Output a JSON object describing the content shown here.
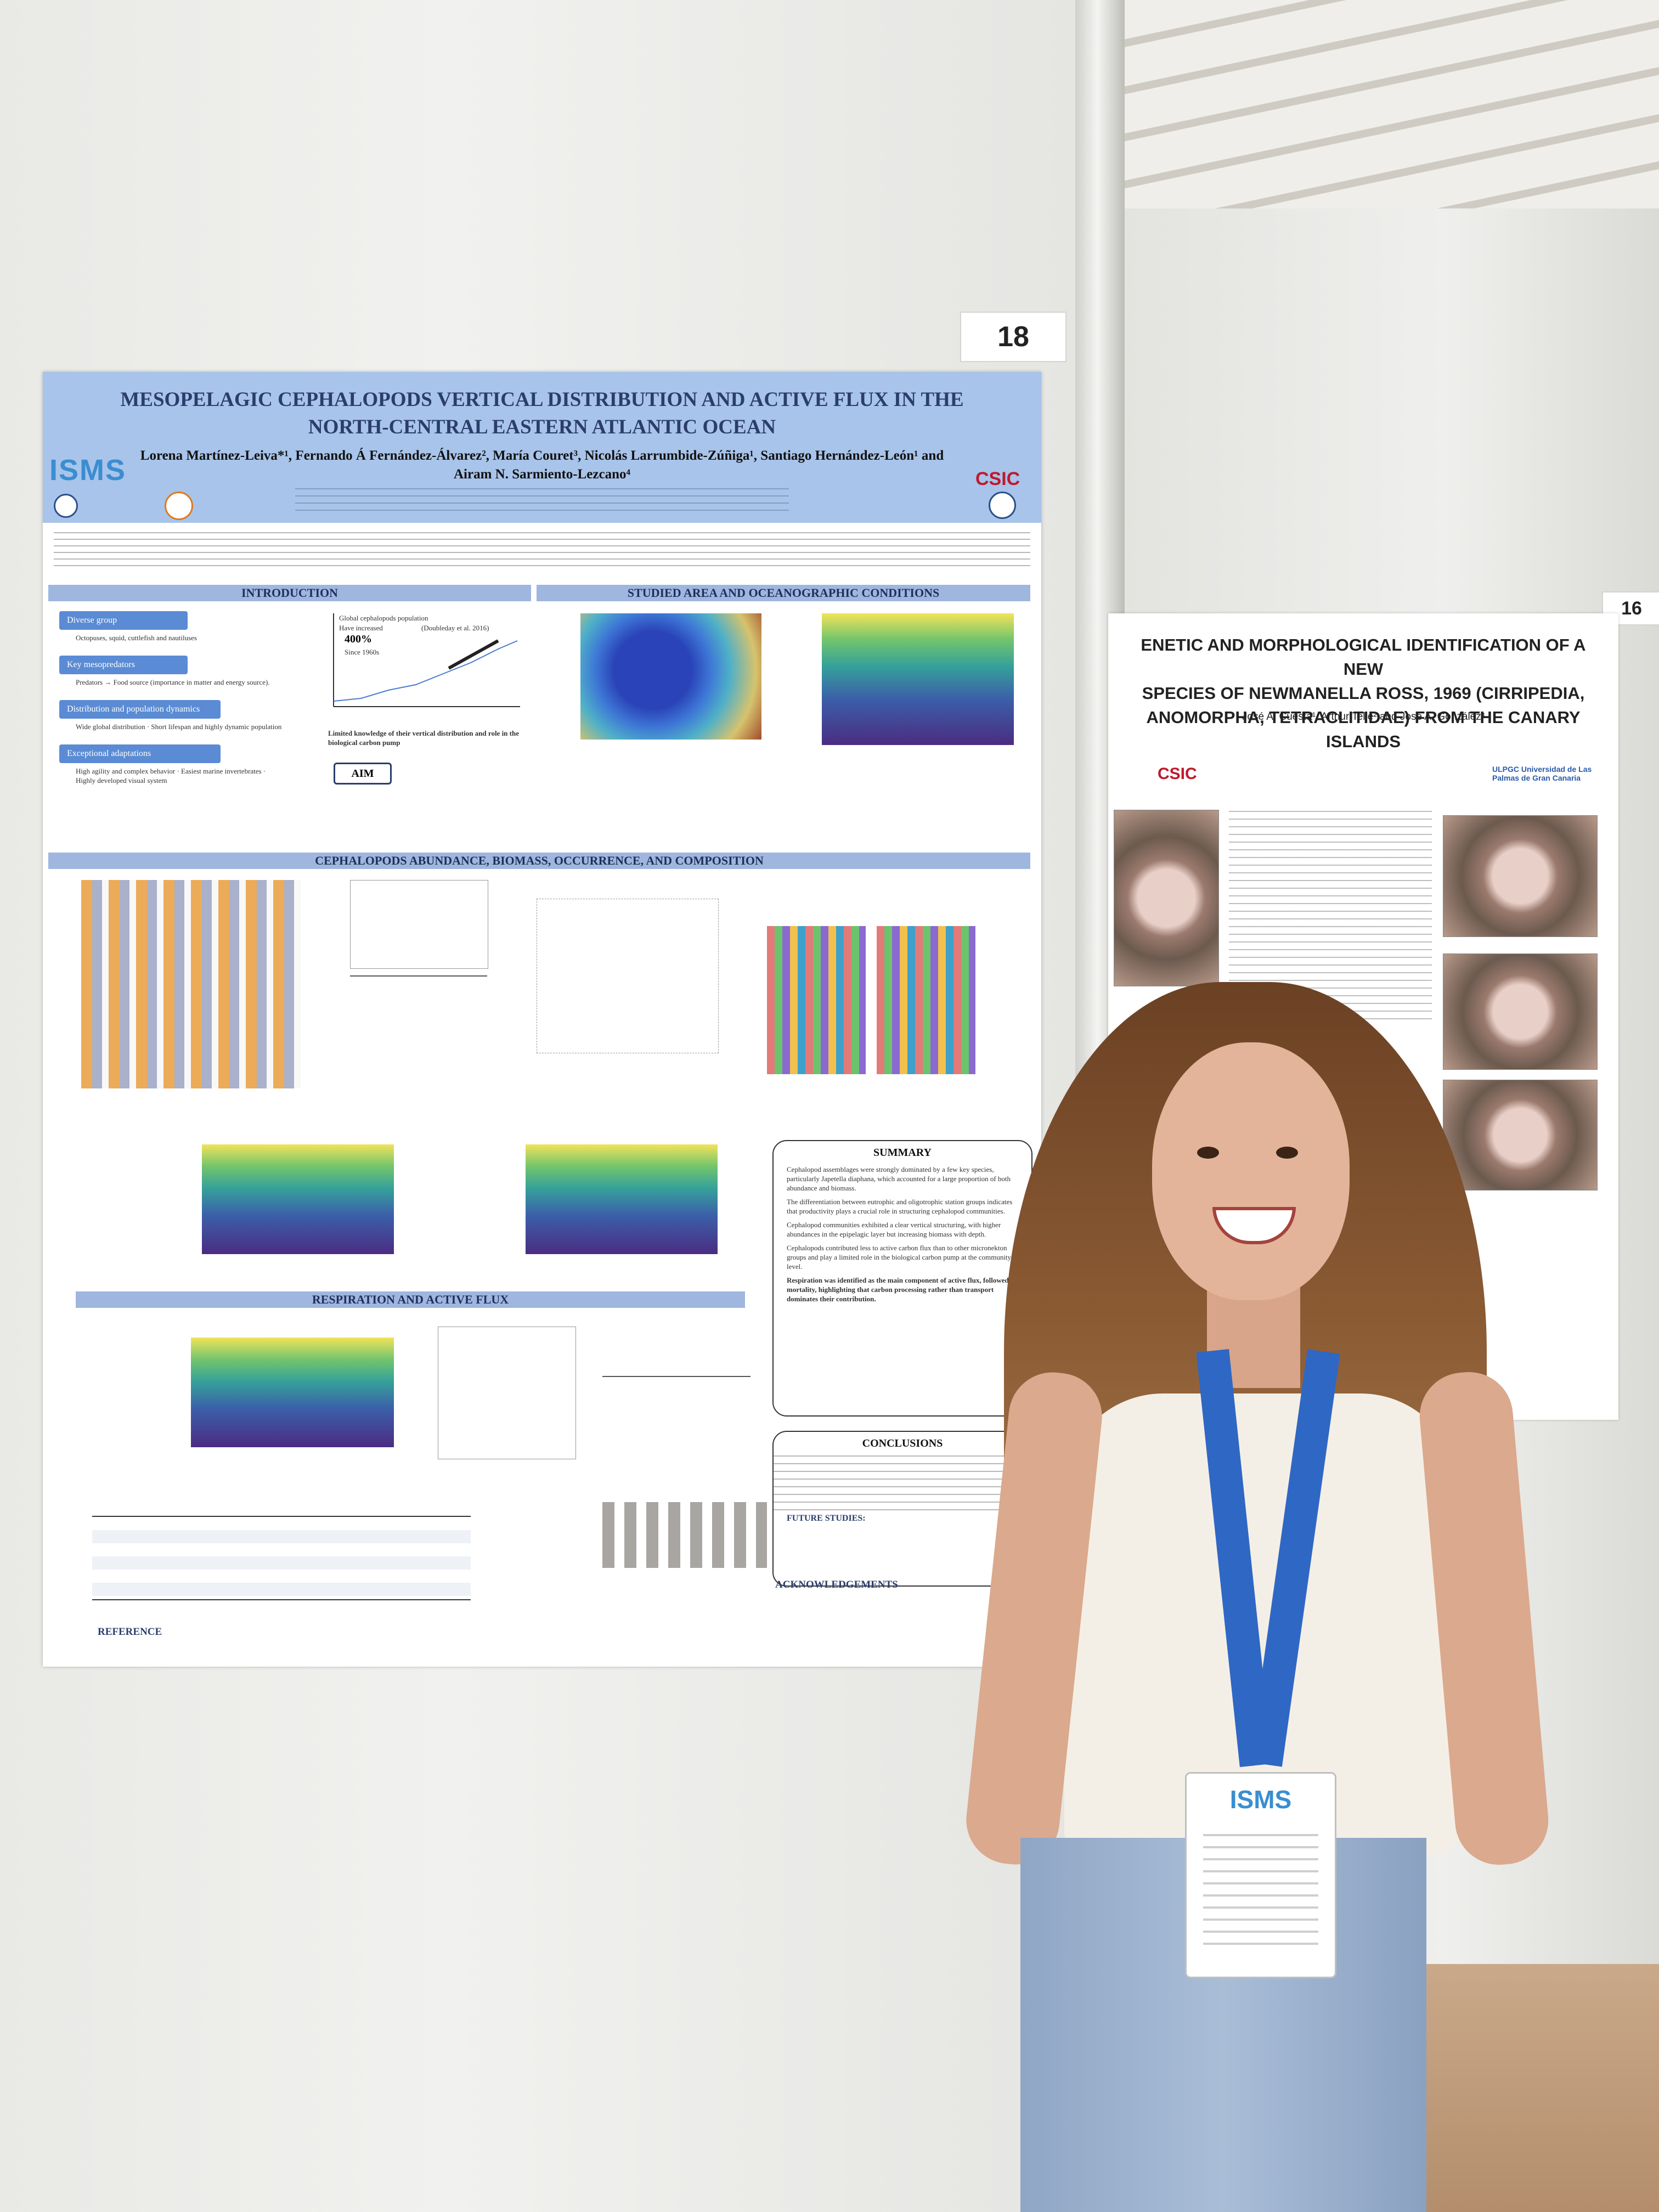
{
  "poster_number": "18",
  "right_poster_number": "16",
  "main_poster": {
    "title": "MESOPELAGIC CEPHALOPODS VERTICAL DISTRIBUTION AND ACTIVE FLUX IN THE NORTH-CENTRAL EASTERN ATLANTIC OCEAN",
    "authors": "Lorena Martínez-Leiva*¹, Fernando Á Fernández-Álvarez², María Couret³, Nicolás Larrumbide-Zúñiga¹, Santiago Hernández-León¹ and Airam N. Sarmiento-Lezcano⁴",
    "logo_left": "ISMS",
    "logo_right": "CSIC",
    "sections": {
      "introduction": "INTRODUCTION",
      "study_area": "STUDIED AREA AND OCEANOGRAPHIC CONDITIONS",
      "abundance": "CEPHALOPODS ABUNDANCE, BIOMASS, OCCURRENCE, AND COMPOSITION",
      "respiration": "RESPIRATION AND ACTIVE FLUX",
      "summary": "SUMMARY",
      "conclusions": "CONCLUSIONS",
      "acknowledgements": "ACKNOWLEDGEMENTS",
      "future_studies": "FUTURE STUDIES:",
      "reference": "REFERENCE"
    },
    "intro_boxes": [
      {
        "label": "Diverse group",
        "text": "Octopuses, squid, cuttlefish and nautiluses"
      },
      {
        "label": "Key mesopredators",
        "text": "Predators → Food source (importance in matter and energy source)."
      },
      {
        "label": "Distribution and population dynamics",
        "text": "Wide global distribution · Short lifespan and highly dynamic population"
      },
      {
        "label": "Exceptional adaptations",
        "text": "High agility and complex behavior · Easiest marine invertebrates · Highly developed visual system"
      }
    ],
    "intro_chart": {
      "caption": "Global cephalopods population",
      "stat_label": "Have increased",
      "stat_value": "400%",
      "stat_since": "Since 1960s",
      "citation": "(Doubleday et al. 2016)"
    },
    "aim_label": "AIM",
    "limited_knowledge": "Limited knowledge of their vertical distribution and role in the biological carbon pump",
    "summary_points": [
      "Cephalopod assemblages were strongly dominated by a few key species, particularly Japetella diaphana, which accounted for a large proportion of both abundance and biomass.",
      "The differentiation between eutrophic and oligotrophic station groups indicates that productivity plays a crucial role in structuring cephalopod communities.",
      "Cephalopod communities exhibited a clear vertical structuring, with higher abundances in the epipelagic layer but increasing biomass with depth.",
      "Cephalopods contributed less to active carbon flux than to other micronekton groups and play a limited role in the biological carbon pump at the community level.",
      "Respiration was identified as the main component of active flux, followed by mortality, highlighting that carbon processing rather than transport dominates their contribution."
    ]
  },
  "right_poster": {
    "title_line1": "ENETIC AND MORPHOLOGICAL IDENTIFICATION OF A NEW",
    "title_line2": "SPECIES OF NEWMANELLA ROSS, 1969 (CIRRIPEDIA,",
    "title_line3": "ANOMORPHA, TETRACLITIDAE) FROM THE CANARY ISLANDS",
    "authors": "José A. Cuesta¹, Arthur Telle² and José A. González³",
    "logo_left": "CSIC",
    "logo_right": "ULPGC Universidad de Las Palmas de Gran Canaria"
  },
  "badge": {
    "logo": "ISMS"
  }
}
